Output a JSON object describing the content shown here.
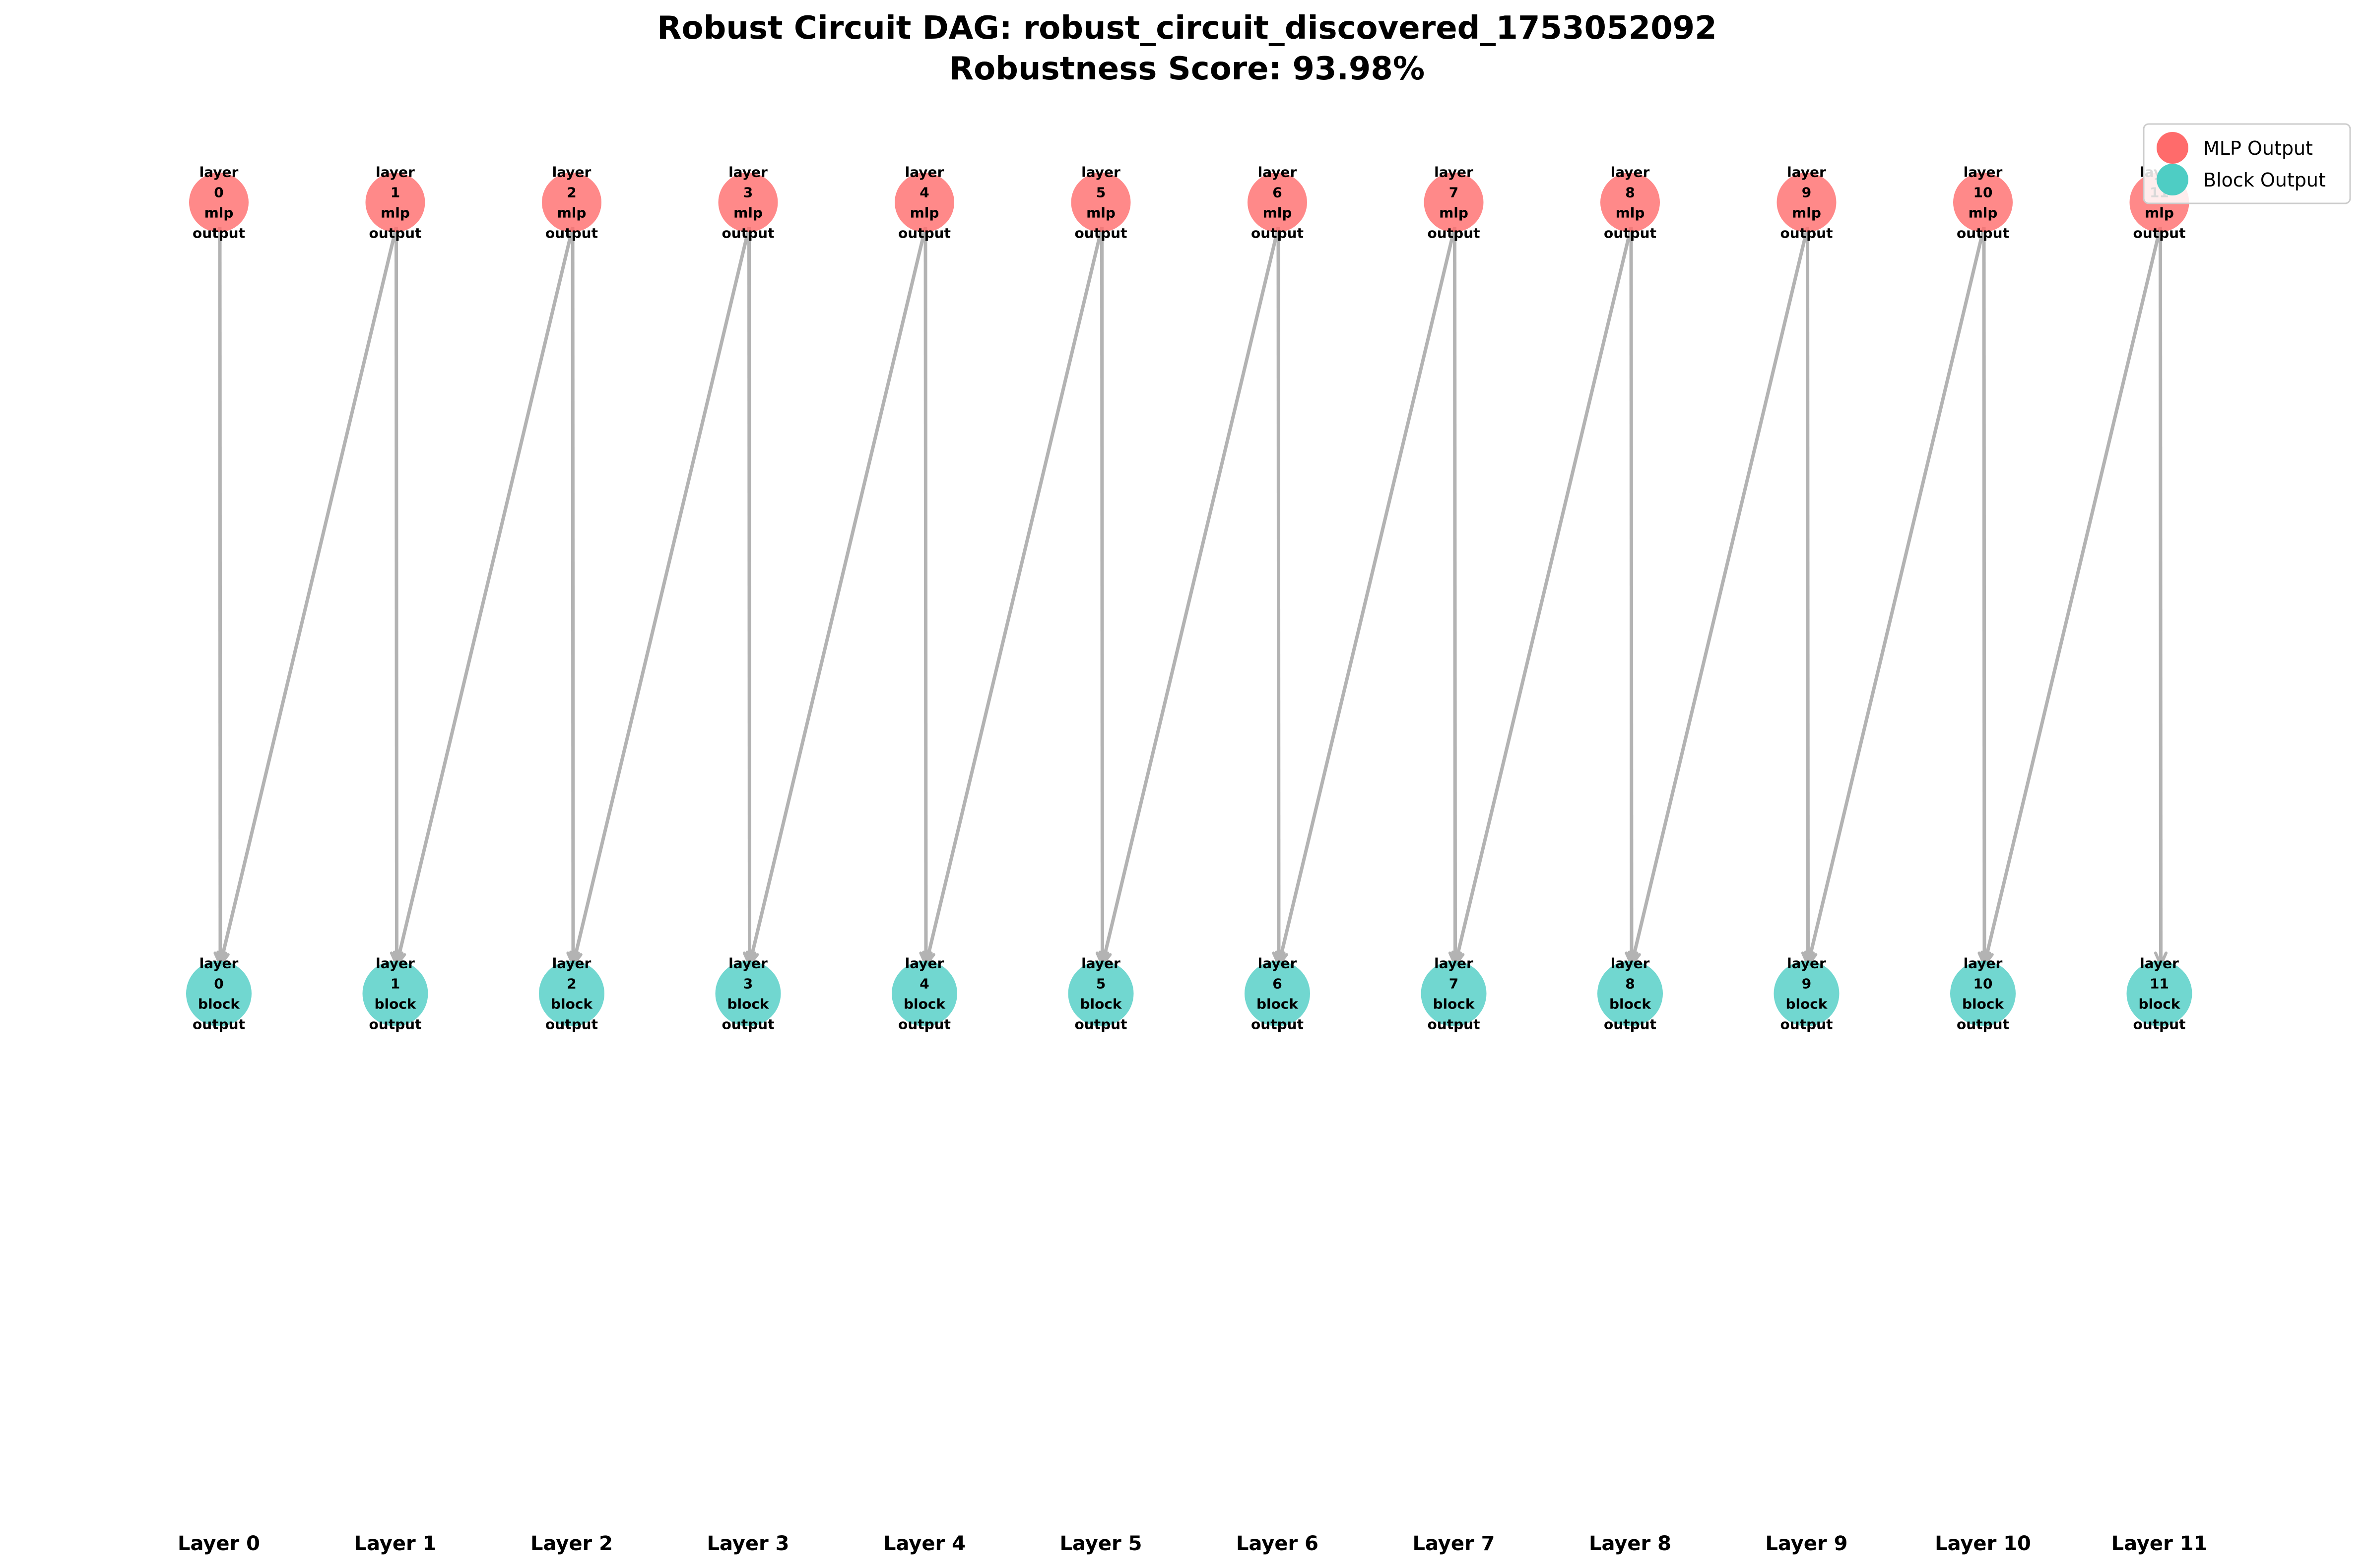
{
  "title": {
    "line1": "Robust Circuit DAG: robust_circuit_discovered_1753052092",
    "line2": "Robustness Score: 93.98%"
  },
  "legend": [
    {
      "label": "MLP Output",
      "color": "#ff6b6b"
    },
    {
      "label": "Block Output",
      "color": "#4ecdc4"
    }
  ],
  "colors": {
    "mlp": "#ff6b6b",
    "block": "#4ecdc4",
    "edge": "#b3b3b3"
  },
  "layer_labels": [
    "Layer 0",
    "Layer 1",
    "Layer 2",
    "Layer 3",
    "Layer 4",
    "Layer 5",
    "Layer 6",
    "Layer 7",
    "Layer 8",
    "Layer 9",
    "Layer 10",
    "Layer 11"
  ],
  "mlp_nodes": [
    {
      "id": "mlp0",
      "label": [
        "layer",
        "0",
        "mlp",
        "output"
      ]
    },
    {
      "id": "mlp1",
      "label": [
        "layer",
        "1",
        "mlp",
        "output"
      ]
    },
    {
      "id": "mlp2",
      "label": [
        "layer",
        "2",
        "mlp",
        "output"
      ]
    },
    {
      "id": "mlp3",
      "label": [
        "layer",
        "3",
        "mlp",
        "output"
      ]
    },
    {
      "id": "mlp4",
      "label": [
        "layer",
        "4",
        "mlp",
        "output"
      ]
    },
    {
      "id": "mlp5",
      "label": [
        "layer",
        "5",
        "mlp",
        "output"
      ]
    },
    {
      "id": "mlp6",
      "label": [
        "layer",
        "6",
        "mlp",
        "output"
      ]
    },
    {
      "id": "mlp7",
      "label": [
        "layer",
        "7",
        "mlp",
        "output"
      ]
    },
    {
      "id": "mlp8",
      "label": [
        "layer",
        "8",
        "mlp",
        "output"
      ]
    },
    {
      "id": "mlp9",
      "label": [
        "layer",
        "9",
        "mlp",
        "output"
      ]
    },
    {
      "id": "mlp10",
      "label": [
        "layer",
        "10",
        "mlp",
        "output"
      ]
    },
    {
      "id": "mlp11",
      "label": [
        "layer",
        "11",
        "mlp",
        "output"
      ]
    }
  ],
  "block_nodes": [
    {
      "id": "block0",
      "label": [
        "layer",
        "0",
        "block",
        "output"
      ]
    },
    {
      "id": "block1",
      "label": [
        "layer",
        "1",
        "block",
        "output"
      ]
    },
    {
      "id": "block2",
      "label": [
        "layer",
        "2",
        "block",
        "output"
      ]
    },
    {
      "id": "block3",
      "label": [
        "layer",
        "3",
        "block",
        "output"
      ]
    },
    {
      "id": "block4",
      "label": [
        "layer",
        "4",
        "block",
        "output"
      ]
    },
    {
      "id": "block5",
      "label": [
        "layer",
        "5",
        "block",
        "output"
      ]
    },
    {
      "id": "block6",
      "label": [
        "layer",
        "6",
        "block",
        "output"
      ]
    },
    {
      "id": "block7",
      "label": [
        "layer",
        "7",
        "block",
        "output"
      ]
    },
    {
      "id": "block8",
      "label": [
        "layer",
        "8",
        "block",
        "output"
      ]
    },
    {
      "id": "block9",
      "label": [
        "layer",
        "9",
        "block",
        "output"
      ]
    },
    {
      "id": "block10",
      "label": [
        "layer",
        "10",
        "block",
        "output"
      ]
    },
    {
      "id": "block11",
      "label": [
        "layer",
        "11",
        "block",
        "output"
      ]
    }
  ],
  "edges": [
    {
      "from": "mlp0",
      "to": "block0"
    },
    {
      "from": "mlp1",
      "to": "block0"
    },
    {
      "from": "mlp1",
      "to": "block1"
    },
    {
      "from": "mlp2",
      "to": "block1"
    },
    {
      "from": "mlp2",
      "to": "block2"
    },
    {
      "from": "mlp3",
      "to": "block2"
    },
    {
      "from": "mlp3",
      "to": "block3"
    },
    {
      "from": "mlp4",
      "to": "block3"
    },
    {
      "from": "mlp4",
      "to": "block4"
    },
    {
      "from": "mlp5",
      "to": "block4"
    },
    {
      "from": "mlp5",
      "to": "block5"
    },
    {
      "from": "mlp6",
      "to": "block5"
    },
    {
      "from": "mlp6",
      "to": "block6"
    },
    {
      "from": "mlp7",
      "to": "block6"
    },
    {
      "from": "mlp7",
      "to": "block7"
    },
    {
      "from": "mlp8",
      "to": "block7"
    },
    {
      "from": "mlp8",
      "to": "block8"
    },
    {
      "from": "mlp9",
      "to": "block8"
    },
    {
      "from": "mlp9",
      "to": "block9"
    },
    {
      "from": "mlp10",
      "to": "block9"
    },
    {
      "from": "mlp10",
      "to": "block10"
    },
    {
      "from": "mlp11",
      "to": "block10"
    },
    {
      "from": "mlp11",
      "to": "block11"
    }
  ]
}
